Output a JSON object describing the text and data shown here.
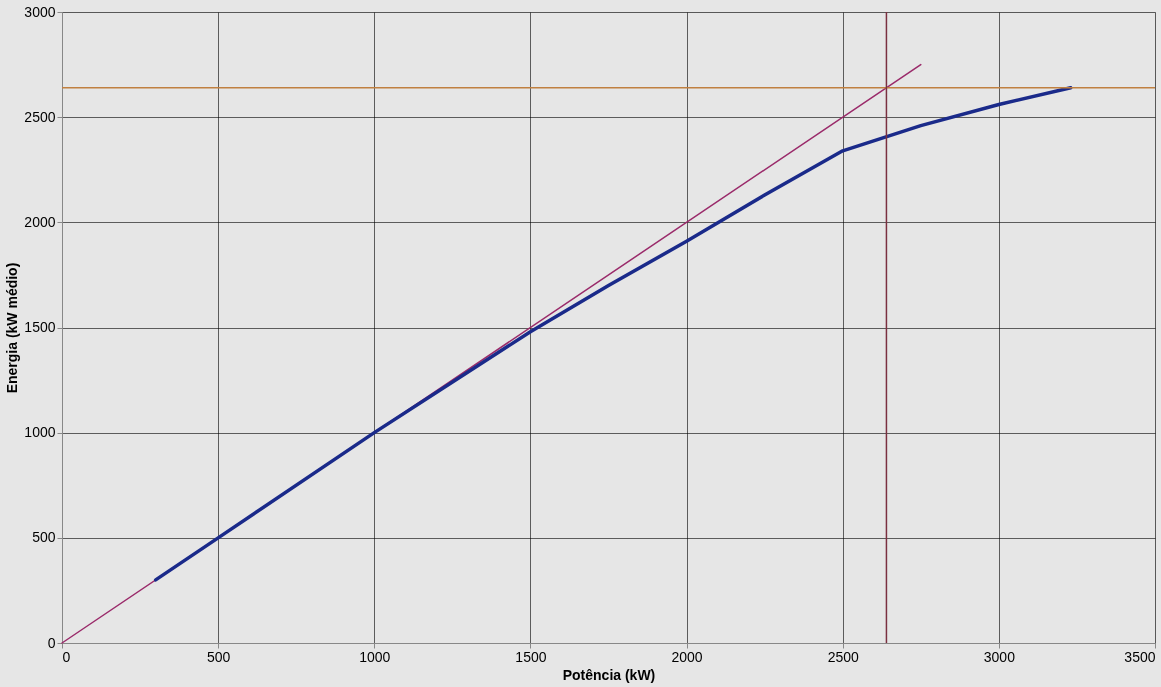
{
  "chart_data": {
    "type": "line",
    "xlabel": "Potência (kW)",
    "ylabel": "Energia (kW médio)",
    "xlim": [
      0,
      3500
    ],
    "ylim": [
      0,
      3000
    ],
    "xticks": [
      0,
      500,
      1000,
      1500,
      2000,
      2500,
      3000,
      3500
    ],
    "yticks": [
      0,
      500,
      1000,
      1500,
      2000,
      2500,
      3000
    ],
    "grid": true,
    "marker": "none",
    "line_style": "solid",
    "series": [
      {
        "color": "#9a2a6a",
        "x": [
          0,
          2750
        ],
        "values": [
          0,
          2750
        ]
      },
      {
        "color": "#1a2a8a",
        "x": [
          300,
          500,
          1000,
          1500,
          1750,
          2000,
          2250,
          2500,
          2750,
          3000,
          3230
        ],
        "values": [
          300,
          500,
          1000,
          1480,
          1700,
          1910,
          2130,
          2340,
          2460,
          2560,
          2640
        ]
      }
    ],
    "ref_lines": [
      {
        "axis": "y",
        "value": 2640,
        "color": "#c08040"
      },
      {
        "axis": "x",
        "value": 2640,
        "color": "#7a3040"
      }
    ]
  }
}
